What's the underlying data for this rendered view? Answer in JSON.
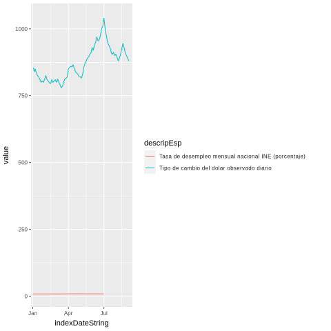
{
  "chart_data": {
    "type": "line",
    "xlabel": "indexDateString",
    "ylabel": "value",
    "x_tick_labels": [
      "Jan",
      "Apr",
      "Jul"
    ],
    "x_ticks_month": [
      0,
      3,
      6
    ],
    "x_range_month": [
      -0.15,
      8.4
    ],
    "y_ticks": [
      0,
      250,
      500,
      750,
      1000
    ],
    "y_tick_labels": [
      "0",
      "250",
      "500",
      "750",
      "1000"
    ],
    "ylim": [
      -40,
      1095
    ],
    "grid": true,
    "legend": {
      "title": "descripEsp",
      "position": "right"
    },
    "series": [
      {
        "name": "Tasa de desempleo mensual nacional INE (porcentaje)",
        "color": "#F8766D",
        "x_month": [
          0.0,
          1.0,
          2.0,
          3.0,
          4.0,
          5.0,
          6.0
        ],
        "values": [
          8.2,
          8.3,
          8.5,
          8.7,
          8.9,
          8.8,
          8.6
        ]
      },
      {
        "name": "Tipo de cambio del dolar observado diario",
        "color": "#00BFC4",
        "x_month": [
          0.05,
          0.12,
          0.2,
          0.3,
          0.4,
          0.5,
          0.6,
          0.7,
          0.8,
          0.9,
          1.0,
          1.1,
          1.2,
          1.3,
          1.4,
          1.5,
          1.6,
          1.7,
          1.8,
          1.9,
          2.0,
          2.1,
          2.2,
          2.3,
          2.4,
          2.5,
          2.6,
          2.7,
          2.8,
          2.9,
          3.0,
          3.1,
          3.2,
          3.3,
          3.4,
          3.5,
          3.6,
          3.7,
          3.8,
          3.9,
          4.0,
          4.1,
          4.2,
          4.3,
          4.4,
          4.5,
          4.6,
          4.7,
          4.8,
          4.9,
          5.0,
          5.1,
          5.2,
          5.3,
          5.4,
          5.5,
          5.6,
          5.7,
          5.8,
          5.9,
          6.0,
          6.1,
          6.2,
          6.3,
          6.4,
          6.5,
          6.55,
          6.62,
          6.7,
          6.8,
          6.9,
          7.0,
          7.1,
          7.2,
          7.3,
          7.4,
          7.5,
          7.6,
          7.7,
          7.8,
          7.9,
          8.0,
          8.1
        ],
        "values": [
          855,
          840,
          850,
          835,
          825,
          820,
          810,
          800,
          805,
          800,
          812,
          825,
          810,
          805,
          798,
          795,
          810,
          800,
          805,
          810,
          800,
          812,
          800,
          790,
          780,
          785,
          800,
          812,
          815,
          820,
          850,
          855,
          860,
          858,
          866,
          850,
          840,
          835,
          830,
          822,
          820,
          816,
          830,
          855,
          870,
          880,
          890,
          895,
          905,
          910,
          930,
          920,
          940,
          950,
          970,
          955,
          960,
          975,
          1000,
          1010,
          1040,
          1000,
          975,
          950,
          940,
          930,
          925,
          910,
          905,
          912,
          900,
          905,
          895,
          880,
          890,
          905,
          925,
          945,
          930,
          910,
          900,
          890,
          880
        ]
      }
    ]
  }
}
